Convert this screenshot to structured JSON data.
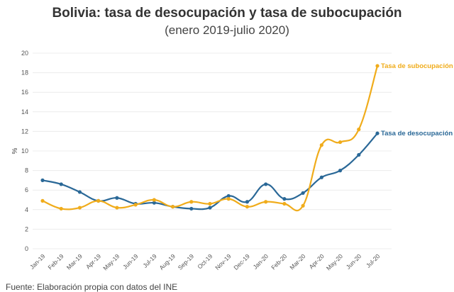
{
  "chart_data": {
    "type": "line",
    "title": "Bolivia: tasa de desocupación y tasa de subocupación",
    "subtitle": "(enero 2019-julio 2020)",
    "xlabel": "",
    "ylabel": "%",
    "ylim": [
      0,
      20
    ],
    "yticks": [
      0,
      2,
      4,
      6,
      8,
      10,
      12,
      14,
      16,
      18,
      20
    ],
    "grid": true,
    "legend": "direct labels at line ends",
    "categories": [
      "Jan-19",
      "Feb-19",
      "Mar-19",
      "Apr-19",
      "May-19",
      "Jun-19",
      "Jul-19",
      "Aug-19",
      "Sep-19",
      "Oct-19",
      "Nov-19",
      "Dec-19",
      "Jan-20",
      "Feb-20",
      "Mar-20",
      "Apr-20",
      "May-20",
      "Jun-20",
      "Jul-20"
    ],
    "series": [
      {
        "name": "Tasa de desocupación",
        "color": "#2a6897",
        "values": [
          7.0,
          6.6,
          5.8,
          4.9,
          5.2,
          4.6,
          4.7,
          4.3,
          4.1,
          4.2,
          5.4,
          4.8,
          6.6,
          5.1,
          5.7,
          7.3,
          8.0,
          9.6,
          11.8
        ]
      },
      {
        "name": "Tasa de subocupación",
        "color": "#f0ac1b",
        "values": [
          4.9,
          4.1,
          4.2,
          4.9,
          4.2,
          4.5,
          5.0,
          4.3,
          4.8,
          4.6,
          5.1,
          4.3,
          4.8,
          4.6,
          4.4,
          10.6,
          10.9,
          12.2,
          18.7
        ]
      }
    ]
  },
  "source": "Fuente: Elaboración propia con datos del INE"
}
